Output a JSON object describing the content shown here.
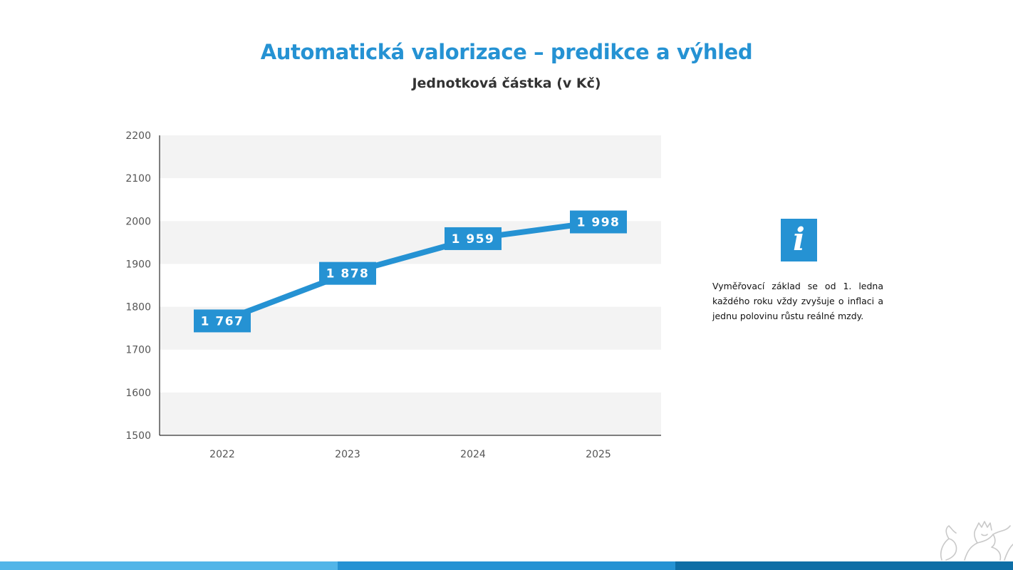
{
  "title": "Automatická valorizace – predikce a výhled",
  "subtitle": "Jednotková částka (v Kč)",
  "info": {
    "icon": "info-icon",
    "icon_glyph": "i",
    "text": "Vyměřovací základ se od 1. ledna každého roku vždy zvyšuje o inflaci a jednu polovinu růstu reálné mzdy."
  },
  "colors": {
    "accent": "#2592d3",
    "band": "#f3f3f3",
    "footer": [
      "#52b5e8",
      "#2592d3",
      "#0e6ea6"
    ]
  },
  "chart_data": {
    "type": "line",
    "categories": [
      "2022",
      "2023",
      "2024",
      "2025"
    ],
    "values": [
      1767,
      1878,
      1959,
      1998
    ],
    "data_labels": [
      "1 767",
      "1 878",
      "1 959",
      "1 998"
    ],
    "title": "Jednotková částka (v Kč)",
    "xlabel": "",
    "ylabel": "",
    "ylim": [
      1500,
      2200
    ],
    "yticks": [
      1500,
      1600,
      1700,
      1800,
      1900,
      2000,
      2100,
      2200
    ],
    "grid": "alternating horizontal bands",
    "legend": "none",
    "color": "#2592d3"
  }
}
